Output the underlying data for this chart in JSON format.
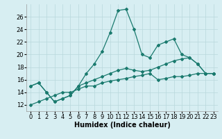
{
  "xlabel": "Humidex (Indice chaleur)",
  "background_color": "#d7eef2",
  "grid_color": "#b8d8dc",
  "line_color": "#1a7a6e",
  "x_values": [
    0,
    1,
    2,
    3,
    4,
    5,
    6,
    7,
    8,
    9,
    10,
    11,
    12,
    13,
    14,
    15,
    16,
    17,
    18,
    19,
    20,
    21,
    22,
    23
  ],
  "series1": [
    15,
    15.5,
    14,
    12.5,
    13,
    13.5,
    15,
    17,
    18.5,
    20.5,
    23.5,
    27,
    27.2,
    24,
    20,
    19.5,
    21.5,
    22,
    22.5,
    20,
    19.5,
    18.5,
    17,
    17
  ],
  "series2": [
    15,
    15.5,
    14,
    12.5,
    13,
    13.5,
    15,
    15.5,
    16,
    16.5,
    17,
    17.5,
    17.8,
    17.5,
    17.3,
    17.5,
    18,
    18.5,
    19,
    19.3,
    19.5,
    18.5,
    17,
    17
  ],
  "series3": [
    12,
    12.5,
    13,
    13.5,
    14,
    14,
    14.5,
    15,
    15,
    15.5,
    15.8,
    16,
    16.2,
    16.5,
    16.7,
    17,
    16,
    16.2,
    16.5,
    16.5,
    16.7,
    17,
    17,
    17
  ],
  "ylim": [
    11,
    28
  ],
  "yticks": [
    12,
    14,
    16,
    18,
    20,
    22,
    24,
    26
  ],
  "xlabel_fontsize": 7,
  "tick_fontsize": 6,
  "lw": 0.9,
  "ms": 2.0
}
